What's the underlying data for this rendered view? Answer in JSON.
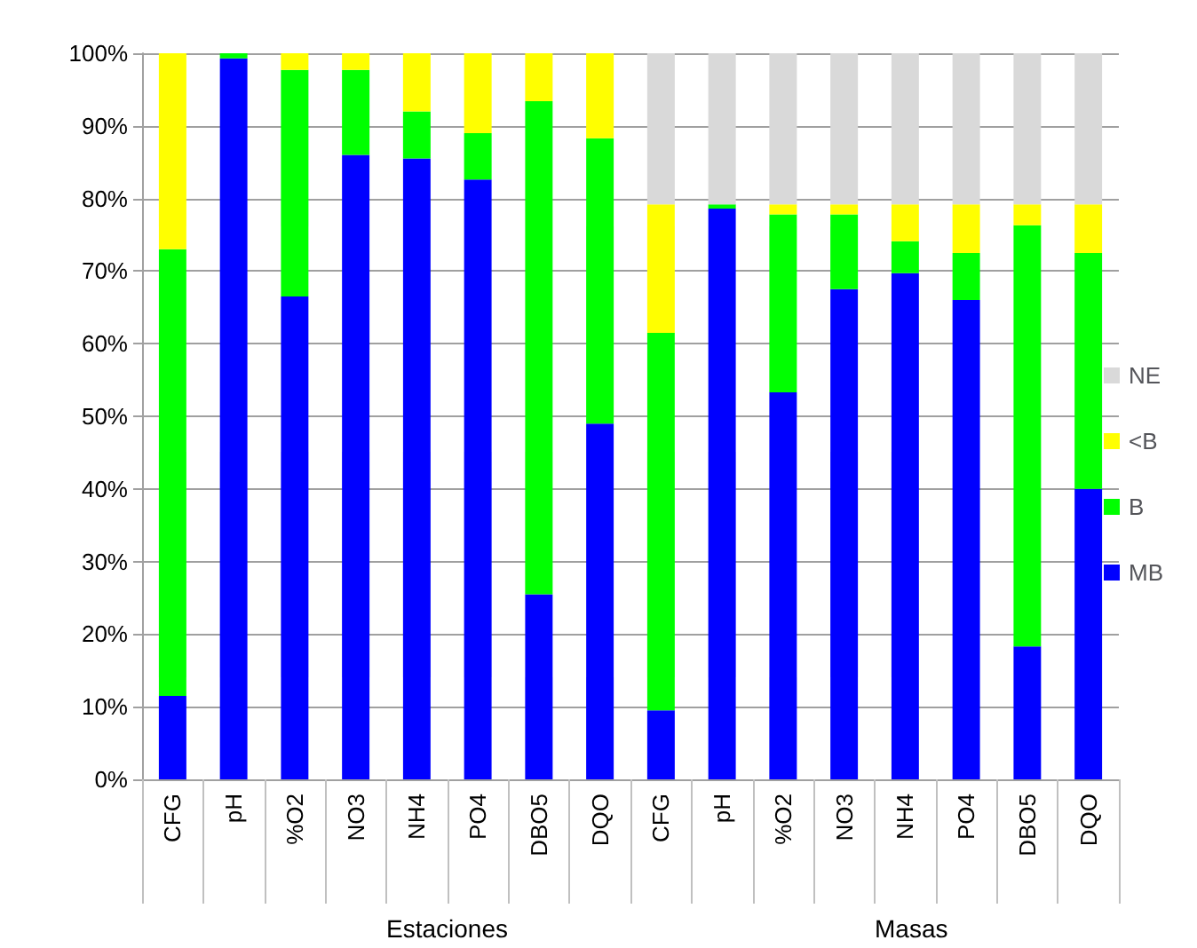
{
  "chart_data": {
    "type": "bar",
    "stacked": true,
    "categories": [
      "CFG",
      "pH",
      "%O2",
      "NO3",
      "NH4",
      "PO4",
      "DBO5",
      "DQO",
      "CFG",
      "pH",
      "%O2",
      "NO3",
      "NH4",
      "PO4",
      "DBO5",
      "DQO"
    ],
    "series": [
      {
        "name": "MB",
        "color": "#0000ff",
        "values": [
          11.5,
          99.3,
          66.5,
          86,
          85.5,
          82.6,
          25.5,
          49,
          9.5,
          78.6,
          53.3,
          67.5,
          69.7,
          66,
          18.3,
          40
        ]
      },
      {
        "name": "B",
        "color": "#00ff00",
        "values": [
          61.5,
          0.7,
          31.2,
          11.7,
          6.5,
          6.4,
          67.9,
          39.3,
          52,
          0.6,
          24.5,
          10.3,
          4.4,
          6.5,
          58,
          32.5
        ]
      },
      {
        "name": "<B",
        "color": "#ffff00",
        "values": [
          27,
          0,
          2.3,
          2.3,
          8,
          11,
          6.6,
          11.7,
          17.7,
          0,
          1.4,
          1.4,
          5.1,
          6.7,
          2.9,
          6.7
        ]
      },
      {
        "name": "NE",
        "color": "#d9d9d9",
        "values": [
          0,
          0,
          0,
          0,
          0,
          0,
          0,
          0,
          20.8,
          20.8,
          20.8,
          20.8,
          20.8,
          20.8,
          20.8,
          20.8
        ]
      }
    ],
    "ylim": [
      0,
      100
    ],
    "yticks": [
      {
        "value": 0,
        "label": "0%"
      },
      {
        "value": 10,
        "label": "10%"
      },
      {
        "value": 20,
        "label": "20%"
      },
      {
        "value": 30,
        "label": "30%"
      },
      {
        "value": 40,
        "label": "40%"
      },
      {
        "value": 50,
        "label": "50%"
      },
      {
        "value": 60,
        "label": "60%"
      },
      {
        "value": 70,
        "label": "70%"
      },
      {
        "value": 80,
        "label": "80%"
      },
      {
        "value": 90,
        "label": "90%"
      },
      {
        "value": 100,
        "label": "100%"
      }
    ],
    "grid": "y",
    "legend": "right",
    "annotations": [
      "Estaciones",
      "Masas"
    ]
  }
}
